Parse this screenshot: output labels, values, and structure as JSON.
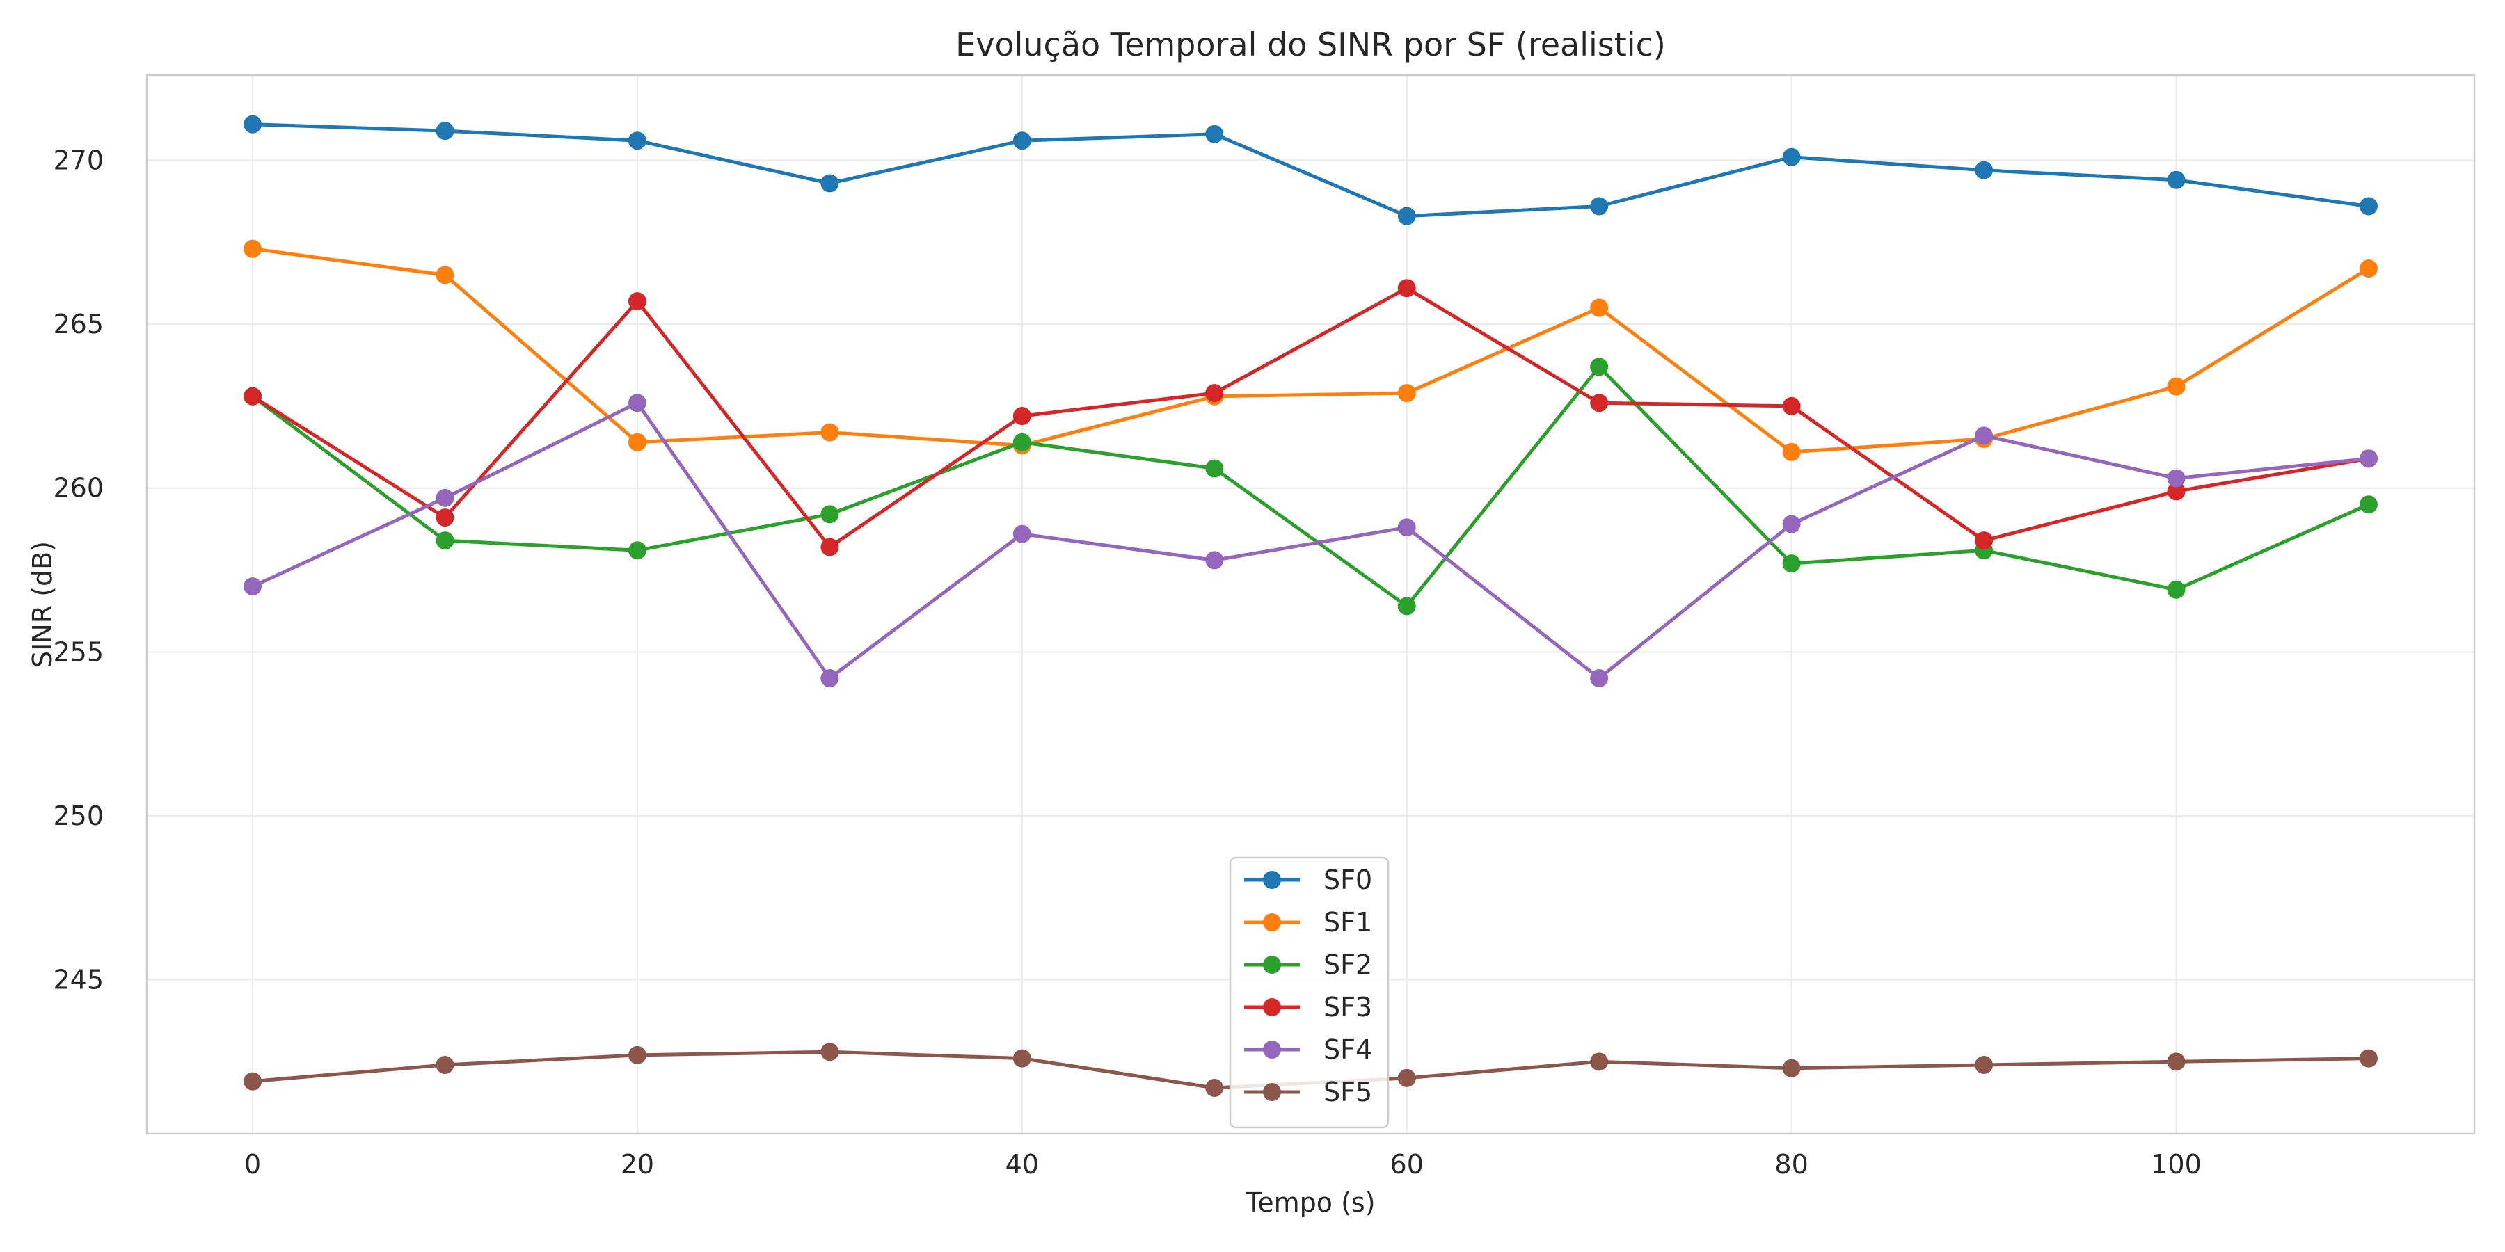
{
  "chart_data": {
    "type": "line",
    "title": "Evolução Temporal do SINR por SF (realistic)",
    "xlabel": "Tempo (s)",
    "ylabel": "SINR (dB)",
    "x": [
      0,
      10,
      20,
      30,
      40,
      50,
      60,
      70,
      80,
      90,
      100,
      110
    ],
    "xlim": [
      -5.5,
      115.5
    ],
    "ylim": [
      240.3,
      272.6
    ],
    "xticks": [
      0,
      20,
      40,
      60,
      80,
      100
    ],
    "yticks": [
      245,
      250,
      255,
      260,
      265,
      270
    ],
    "grid": true,
    "legend_position": "lower-center",
    "series": [
      {
        "name": "SF0",
        "color": "#1f77b4",
        "values": [
          271.1,
          270.9,
          270.6,
          269.3,
          270.6,
          270.8,
          268.3,
          268.6,
          270.1,
          269.7,
          269.4,
          268.6
        ]
      },
      {
        "name": "SF1",
        "color": "#ff7f0e",
        "values": [
          267.3,
          266.5,
          261.4,
          261.7,
          261.3,
          262.8,
          262.9,
          265.5,
          261.1,
          261.5,
          263.1,
          266.7
        ]
      },
      {
        "name": "SF2",
        "color": "#2ca02c",
        "values": [
          262.8,
          258.4,
          258.1,
          259.2,
          261.4,
          260.6,
          256.4,
          263.7,
          257.7,
          258.1,
          256.9,
          259.5
        ]
      },
      {
        "name": "SF3",
        "color": "#d62728",
        "values": [
          262.8,
          259.1,
          265.7,
          258.2,
          262.2,
          262.9,
          266.1,
          262.6,
          262.5,
          258.4,
          259.9,
          260.9
        ]
      },
      {
        "name": "SF4",
        "color": "#9467bd",
        "values": [
          257.0,
          259.7,
          262.6,
          254.2,
          258.6,
          257.8,
          258.8,
          254.2,
          258.9,
          261.6,
          260.3,
          260.9
        ]
      },
      {
        "name": "SF5",
        "color": "#8c564b",
        "values": [
          241.9,
          242.4,
          242.7,
          242.8,
          242.6,
          241.7,
          242.0,
          242.5,
          242.3,
          242.4,
          242.5,
          242.6
        ]
      }
    ]
  }
}
